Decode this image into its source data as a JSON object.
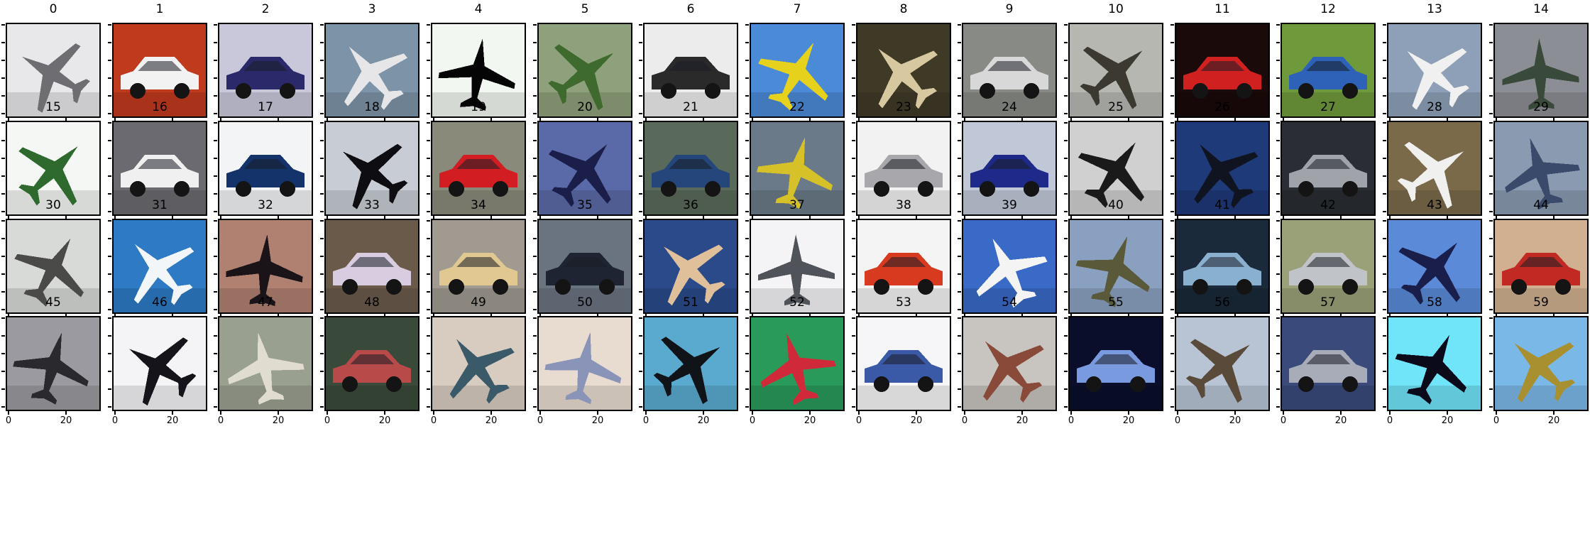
{
  "figure": {
    "x_tick_labels": [
      "0",
      "20"
    ],
    "panels": [
      {
        "title": "0",
        "subject": "airplane",
        "bg": "#e8e8ea",
        "fg": "#6e6e72"
      },
      {
        "title": "1",
        "subject": "car",
        "bg": "#c03a1e",
        "fg": "#f2f2f2"
      },
      {
        "title": "2",
        "subject": "car",
        "bg": "#c8c8da",
        "fg": "#2a2a6a"
      },
      {
        "title": "3",
        "subject": "airplane",
        "bg": "#7d93a8",
        "fg": "#e6e6e8"
      },
      {
        "title": "4",
        "subject": "airplane",
        "bg": "#f2f7f2",
        "fg": "#050505"
      },
      {
        "title": "5",
        "subject": "airplane",
        "bg": "#8fa17c",
        "fg": "#3e6a2e"
      },
      {
        "title": "6",
        "subject": "car",
        "bg": "#ececec",
        "fg": "#2a2a2a"
      },
      {
        "title": "7",
        "subject": "airplane",
        "bg": "#4a8ad6",
        "fg": "#e6d21c"
      },
      {
        "title": "8",
        "subject": "airplane",
        "bg": "#3f3a26",
        "fg": "#d8c8a0"
      },
      {
        "title": "9",
        "subject": "car",
        "bg": "#888a86",
        "fg": "#d8d8d8"
      },
      {
        "title": "10",
        "subject": "airplane",
        "bg": "#b7b7b2",
        "fg": "#3c3a30"
      },
      {
        "title": "11",
        "subject": "car",
        "bg": "#1a0a0a",
        "fg": "#d02020"
      },
      {
        "title": "12",
        "subject": "car",
        "bg": "#6f9a3c",
        "fg": "#2e62b8"
      },
      {
        "title": "13",
        "subject": "airplane",
        "bg": "#8ea0b8",
        "fg": "#f0f0f0"
      },
      {
        "title": "14",
        "subject": "airplane",
        "bg": "#8b8e95",
        "fg": "#3a4a3a"
      },
      {
        "title": "15",
        "subject": "airplane",
        "bg": "#f4f7f4",
        "fg": "#2e6a2e"
      },
      {
        "title": "16",
        "subject": "car",
        "bg": "#6a6a70",
        "fg": "#f0f0f0"
      },
      {
        "title": "17",
        "subject": "car",
        "bg": "#f2f4f6",
        "fg": "#13336a"
      },
      {
        "title": "18",
        "subject": "airplane",
        "bg": "#c8ccd4",
        "fg": "#0e0e12"
      },
      {
        "title": "19",
        "subject": "car",
        "bg": "#8a8a7a",
        "fg": "#d21e22"
      },
      {
        "title": "20",
        "subject": "airplane",
        "bg": "#5a6aa8",
        "fg": "#1a1e48"
      },
      {
        "title": "21",
        "subject": "car",
        "bg": "#5a6a5a",
        "fg": "#24467a"
      },
      {
        "title": "22",
        "subject": "airplane",
        "bg": "#6a7a88",
        "fg": "#d6c228"
      },
      {
        "title": "23",
        "subject": "car",
        "bg": "#f2f2f2",
        "fg": "#a8a8ac"
      },
      {
        "title": "24",
        "subject": "car",
        "bg": "#c0c8d8",
        "fg": "#1e2a8a"
      },
      {
        "title": "25",
        "subject": "airplane",
        "bg": "#d0d0d0",
        "fg": "#1a1a1a"
      },
      {
        "title": "26",
        "subject": "airplane",
        "bg": "#1e3a78",
        "fg": "#101420"
      },
      {
        "title": "27",
        "subject": "car",
        "bg": "#2a2e34",
        "fg": "#a0a4aa"
      },
      {
        "title": "28",
        "subject": "airplane",
        "bg": "#7a6a4a",
        "fg": "#f0f0ee"
      },
      {
        "title": "29",
        "subject": "airplane",
        "bg": "#8a9ab0",
        "fg": "#3a4a6a"
      },
      {
        "title": "30",
        "subject": "airplane",
        "bg": "#d8dad8",
        "fg": "#4a4a48"
      },
      {
        "title": "31",
        "subject": "airplane",
        "bg": "#2e7ac4",
        "fg": "#f2f6f8"
      },
      {
        "title": "32",
        "subject": "airplane",
        "bg": "#b08070",
        "fg": "#1a1418"
      },
      {
        "title": "33",
        "subject": "car",
        "bg": "#6a5a4a",
        "fg": "#d8cce0"
      },
      {
        "title": "34",
        "subject": "car",
        "bg": "#a09a90",
        "fg": "#e0c890"
      },
      {
        "title": "35",
        "subject": "car",
        "bg": "#6a7480",
        "fg": "#1e2432"
      },
      {
        "title": "36",
        "subject": "airplane",
        "bg": "#2a4a8a",
        "fg": "#e0c09a"
      },
      {
        "title": "37",
        "subject": "airplane",
        "bg": "#f4f4f6",
        "fg": "#50545a"
      },
      {
        "title": "38",
        "subject": "car",
        "bg": "#f4f4f4",
        "fg": "#d83a20"
      },
      {
        "title": "39",
        "subject": "airplane",
        "bg": "#3a6ac8",
        "fg": "#f4f4f4"
      },
      {
        "title": "40",
        "subject": "airplane",
        "bg": "#8aa0c0",
        "fg": "#5a5a3a"
      },
      {
        "title": "41",
        "subject": "car",
        "bg": "#1a2a3a",
        "fg": "#8ab0d0"
      },
      {
        "title": "42",
        "subject": "car",
        "bg": "#9aa078",
        "fg": "#c0c4c8"
      },
      {
        "title": "43",
        "subject": "airplane",
        "bg": "#5a8ad8",
        "fg": "#1a1e4a"
      },
      {
        "title": "44",
        "subject": "car",
        "bg": "#d0b090",
        "fg": "#c02a22"
      },
      {
        "title": "45",
        "subject": "airplane",
        "bg": "#9a9aa0",
        "fg": "#2a2a2e"
      },
      {
        "title": "46",
        "subject": "airplane",
        "bg": "#f4f4f6",
        "fg": "#14141a"
      },
      {
        "title": "47",
        "subject": "airplane",
        "bg": "#9aa090",
        "fg": "#e0dcd0"
      },
      {
        "title": "48",
        "subject": "car",
        "bg": "#3a4a3a",
        "fg": "#b84a4a"
      },
      {
        "title": "49",
        "subject": "airplane",
        "bg": "#d8ccc0",
        "fg": "#3a5a6a"
      },
      {
        "title": "50",
        "subject": "airplane",
        "bg": "#e8dcd0",
        "fg": "#8a94b8"
      },
      {
        "title": "51",
        "subject": "airplane",
        "bg": "#5aaad0",
        "fg": "#101418"
      },
      {
        "title": "52",
        "subject": "airplane",
        "bg": "#2a9a5a",
        "fg": "#d02a3a"
      },
      {
        "title": "53",
        "subject": "car",
        "bg": "#f6f6f8",
        "fg": "#3a5aa8"
      },
      {
        "title": "54",
        "subject": "airplane",
        "bg": "#c8c4c0",
        "fg": "#8a4a3a"
      },
      {
        "title": "55",
        "subject": "car",
        "bg": "#0a0e2a",
        "fg": "#7a9ae0"
      },
      {
        "title": "56",
        "subject": "airplane",
        "bg": "#b8c4d4",
        "fg": "#5a4a3a"
      },
      {
        "title": "57",
        "subject": "car",
        "bg": "#3a4a7a",
        "fg": "#a8acb8"
      },
      {
        "title": "58",
        "subject": "airplane",
        "bg": "#70e4f8",
        "fg": "#0a0a1a"
      },
      {
        "title": "59",
        "subject": "airplane",
        "bg": "#7ab8e8",
        "fg": "#a89030"
      }
    ]
  }
}
